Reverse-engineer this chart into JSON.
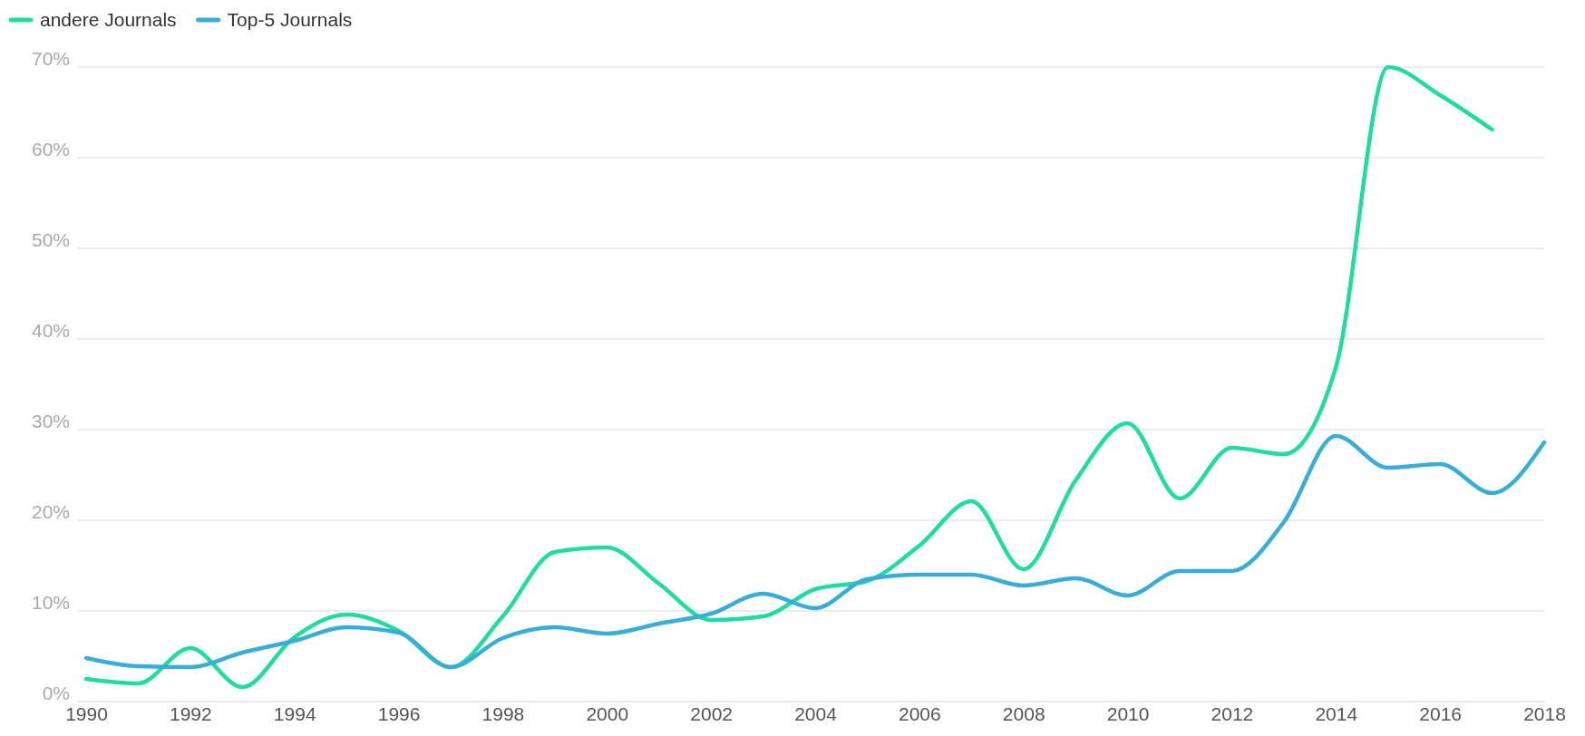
{
  "chart_data": {
    "type": "line",
    "x": [
      1990,
      1991,
      1992,
      1993,
      1994,
      1995,
      1996,
      1997,
      1998,
      1999,
      2000,
      2001,
      2002,
      2003,
      2004,
      2005,
      2006,
      2007,
      2008,
      2009,
      2010,
      2011,
      2012,
      2013,
      2014,
      2015,
      2016,
      2017,
      2018
    ],
    "series": [
      {
        "name": "andere Journals",
        "color": "#1fdca0",
        "values": [
          2.5,
          2.0,
          5.9,
          1.6,
          7.1,
          9.6,
          7.8,
          3.8,
          9.4,
          16.5,
          17,
          13,
          9.0,
          9.4,
          12.4,
          13.3,
          17.2,
          22.1,
          14.6,
          24.4,
          30.7,
          22.4,
          28,
          27.3,
          36.9,
          70,
          66.9,
          63.1,
          null
        ]
      },
      {
        "name": "Top-5 Journals",
        "color": "#38aed6",
        "values": [
          4.8,
          3.9,
          3.8,
          5.4,
          6.7,
          8.2,
          7.6,
          3.8,
          7.0,
          8.2,
          7.5,
          8.6,
          9.7,
          11.9,
          10.3,
          13.5,
          14,
          14,
          12.8,
          13.6,
          11.7,
          14.4,
          14.4,
          19.8,
          29.3,
          25.8,
          26.2,
          23,
          28.6
        ]
      }
    ],
    "xlim": [
      1990,
      2018
    ],
    "xticks": [
      1990,
      1992,
      1994,
      1996,
      1998,
      2000,
      2002,
      2004,
      2006,
      2008,
      2010,
      2012,
      2014,
      2016,
      2018
    ],
    "ylim": [
      0,
      70
    ],
    "yticks": [
      {
        "value": 0,
        "label": "0%"
      },
      {
        "value": 10,
        "label": "10%"
      },
      {
        "value": 20,
        "label": "20%"
      },
      {
        "value": 30,
        "label": "30%"
      },
      {
        "value": 40,
        "label": "40%"
      },
      {
        "value": 50,
        "label": "50%"
      },
      {
        "value": 60,
        "label": "60%"
      },
      {
        "value": 70,
        "label": "70%"
      }
    ],
    "grid": "y",
    "legend": "top left",
    "marker": "none",
    "line_style": "solid"
  }
}
